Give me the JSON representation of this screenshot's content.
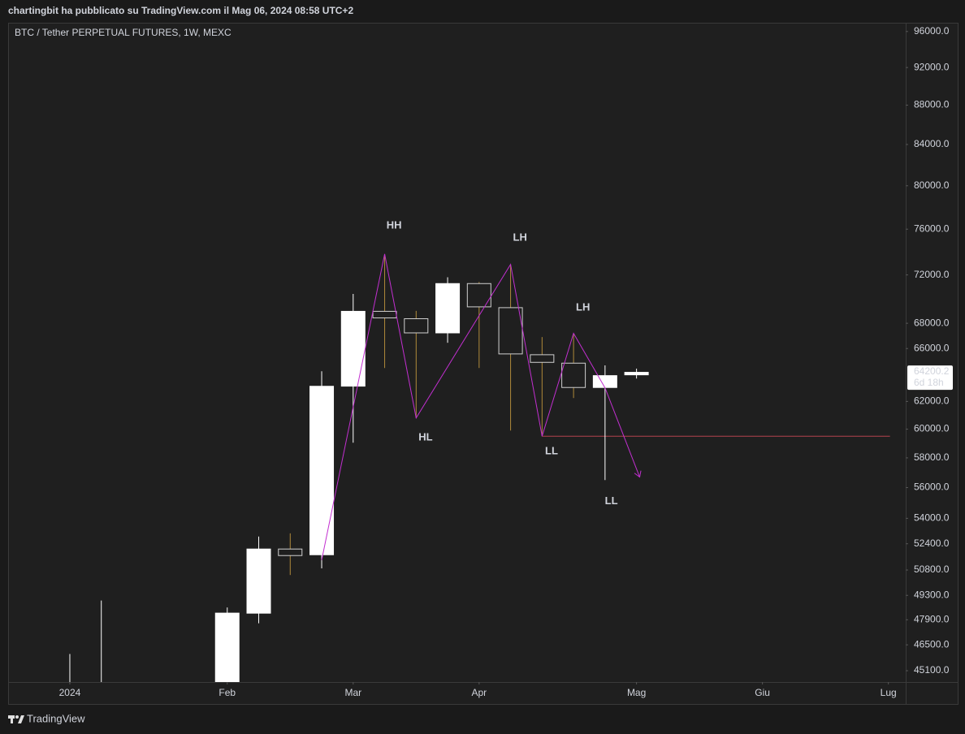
{
  "header": {
    "text": "chartingbit ha pubblicato su TradingView.com il Mag 06, 2024 08:58 UTC+2"
  },
  "footer": {
    "brand": "TradingView"
  },
  "chart_data": {
    "type": "candlestick",
    "title": "BTC / Tether PERPETUAL FUTURES, 1W, MEXC",
    "log_scale": true,
    "grid": false,
    "x": [
      0,
      1,
      5,
      6,
      7,
      8,
      9,
      10,
      11,
      12,
      13,
      14,
      15,
      16,
      17,
      18
    ],
    "open": [
      null,
      null,
      null,
      48250,
      52100,
      51700,
      63100,
      69000,
      68400,
      67200,
      71300,
      69300,
      65550,
      64900,
      63000,
      63950
    ],
    "high": [
      46000,
      49000,
      48600,
      52850,
      53050,
      64250,
      70400,
      73800,
      69000,
      71800,
      71400,
      72900,
      66900,
      67200,
      64700,
      64450
    ],
    "low": [
      null,
      null,
      null,
      47700,
      50500,
      50900,
      59050,
      64500,
      60800,
      66450,
      64500,
      59900,
      59500,
      62250,
      56500,
      63700
    ],
    "close": [
      null,
      null,
      48300,
      52100,
      51650,
      63150,
      69000,
      68400,
      67200,
      71300,
      69300,
      65550,
      64900,
      63000,
      63950,
      64200.2
    ],
    "up_color": "#ffffff",
    "down_color": "#1f1f1f",
    "down_border_color": "#d0d0d0",
    "down_wick_color": "#b08a3a",
    "xlim": [
      -1.96,
      26.55
    ],
    "xticks": [
      {
        "value": 0,
        "label": "2024"
      },
      {
        "value": 5,
        "label": "Feb"
      },
      {
        "value": 9,
        "label": "Mar"
      },
      {
        "value": 13,
        "label": "Apr"
      },
      {
        "value": 18,
        "label": "Mag"
      },
      {
        "value": 22,
        "label": "Giu"
      },
      {
        "value": 26,
        "label": "Lug"
      }
    ],
    "ylim": [
      44500,
      97000
    ],
    "yticks": [
      {
        "value": 96000,
        "label": "96000.0"
      },
      {
        "value": 92000,
        "label": "92000.0"
      },
      {
        "value": 88000,
        "label": "88000.0"
      },
      {
        "value": 84000,
        "label": "84000.0"
      },
      {
        "value": 80000,
        "label": "80000.0"
      },
      {
        "value": 76000,
        "label": "76000.0"
      },
      {
        "value": 72000,
        "label": "72000.0"
      },
      {
        "value": 68000,
        "label": "68000.0"
      },
      {
        "value": 66000,
        "label": "66000.0"
      },
      {
        "value": 62000,
        "label": "62000.0"
      },
      {
        "value": 60000,
        "label": "60000.0"
      },
      {
        "value": 58000,
        "label": "58000.0"
      },
      {
        "value": 56000,
        "label": "56000.0"
      },
      {
        "value": 54000,
        "label": "54000.0"
      },
      {
        "value": 52400,
        "label": "52400.0"
      },
      {
        "value": 50800,
        "label": "50800.0"
      },
      {
        "value": 49300,
        "label": "49300.0"
      },
      {
        "value": 47900,
        "label": "47900.0"
      },
      {
        "value": 46500,
        "label": "46500.0"
      },
      {
        "value": 45100,
        "label": "45100.0"
      }
    ],
    "last_price": 64200.2,
    "countdown": "6d 18h",
    "zigzag": {
      "color": "#c22fd0",
      "x": [
        8,
        10,
        11,
        14,
        15,
        16,
        17,
        18.1
      ],
      "y": [
        51400,
        73800,
        60800,
        72900,
        59500,
        67200,
        63000,
        56700
      ]
    },
    "level": {
      "color": "#b4444f",
      "value": 59500,
      "x": [
        15,
        26.05
      ]
    },
    "annotations": [
      {
        "text": "HH",
        "x": 10.3,
        "y": 76300
      },
      {
        "text": "HL",
        "x": 11.3,
        "y": 59400
      },
      {
        "text": "LH",
        "x": 14.3,
        "y": 75200
      },
      {
        "text": "LL",
        "x": 15.3,
        "y": 58450
      },
      {
        "text": "LH",
        "x": 16.3,
        "y": 69250
      },
      {
        "text": "LL",
        "x": 17.2,
        "y": 55100
      }
    ]
  }
}
